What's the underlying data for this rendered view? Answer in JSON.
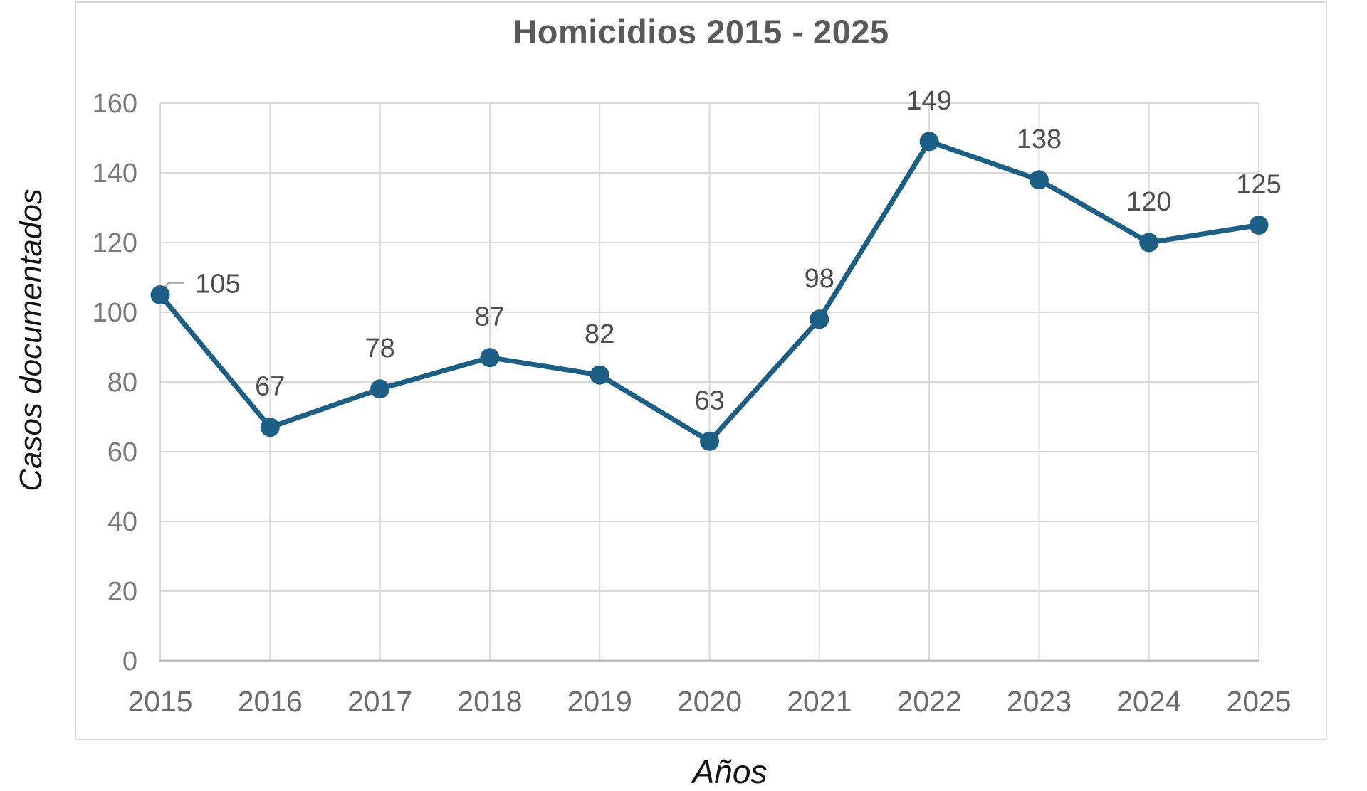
{
  "chart_data": {
    "type": "line",
    "title": "Homicidios 2015 - 2025",
    "xlabel": "Años",
    "ylabel": "Casos documentados",
    "categories": [
      "2015",
      "2016",
      "2017",
      "2018",
      "2019",
      "2020",
      "2021",
      "2022",
      "2023",
      "2024",
      "2025"
    ],
    "values": [
      105,
      67,
      78,
      87,
      82,
      63,
      98,
      149,
      138,
      120,
      125
    ],
    "ylim": [
      0,
      160
    ],
    "yticks": [
      0,
      20,
      40,
      60,
      80,
      100,
      120,
      140,
      160
    ],
    "grid": true,
    "legend": "none",
    "data_labels": "above",
    "colors": {
      "line": "#1d5f84",
      "marker": "#1d5f84",
      "gridline": "#dadada",
      "axis_line": "#c0c0c0",
      "frame_border": "#d8d8d8",
      "title_text": "#595959",
      "data_label_text": "#4d4d4d",
      "y_tick_text": "#7a7a7a",
      "x_tick_text": "#6b6b6b",
      "axis_title_text": "#141414",
      "leader_line": "#a6a6a6",
      "background": "#ffffff"
    }
  }
}
